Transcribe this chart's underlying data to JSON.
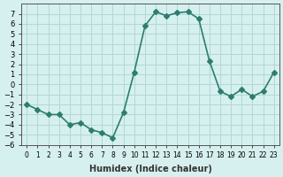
{
  "x": [
    0,
    1,
    2,
    3,
    4,
    5,
    6,
    7,
    8,
    9,
    10,
    11,
    12,
    13,
    14,
    15,
    16,
    17,
    18,
    19,
    20,
    21,
    22,
    23
  ],
  "y": [
    -2,
    -2.5,
    -3,
    -3,
    -4,
    -3.8,
    -4.5,
    -4.8,
    -5.3,
    -2.8,
    1.2,
    5.8,
    7.2,
    6.8,
    7.1,
    7.2,
    6.5,
    2.3,
    -0.7,
    -1.2,
    -0.5,
    -1.2,
    -0.7,
    1.2
  ],
  "color": "#2e7d6e",
  "bg_color": "#d6f0ef",
  "grid_color": "#b0d8d5",
  "xlabel": "Humidex (Indice chaleur)",
  "ylim": [
    -6,
    8
  ],
  "xlim": [
    -0.5,
    23.5
  ],
  "yticks": [
    -6,
    -5,
    -4,
    -3,
    -2,
    -1,
    0,
    1,
    2,
    3,
    4,
    5,
    6,
    7
  ],
  "xticks": [
    0,
    1,
    2,
    3,
    4,
    5,
    6,
    7,
    8,
    9,
    10,
    11,
    12,
    13,
    14,
    15,
    16,
    17,
    18,
    19,
    20,
    21,
    22,
    23
  ],
  "xtick_labels": [
    "0",
    "1",
    "2",
    "3",
    "4",
    "5",
    "6",
    "7",
    "8",
    "9",
    "10",
    "11",
    "12",
    "13",
    "14",
    "15",
    "16",
    "17",
    "18",
    "19",
    "20",
    "21",
    "22",
    "23"
  ],
  "marker": "D",
  "marker_size": 3,
  "line_width": 1.2
}
